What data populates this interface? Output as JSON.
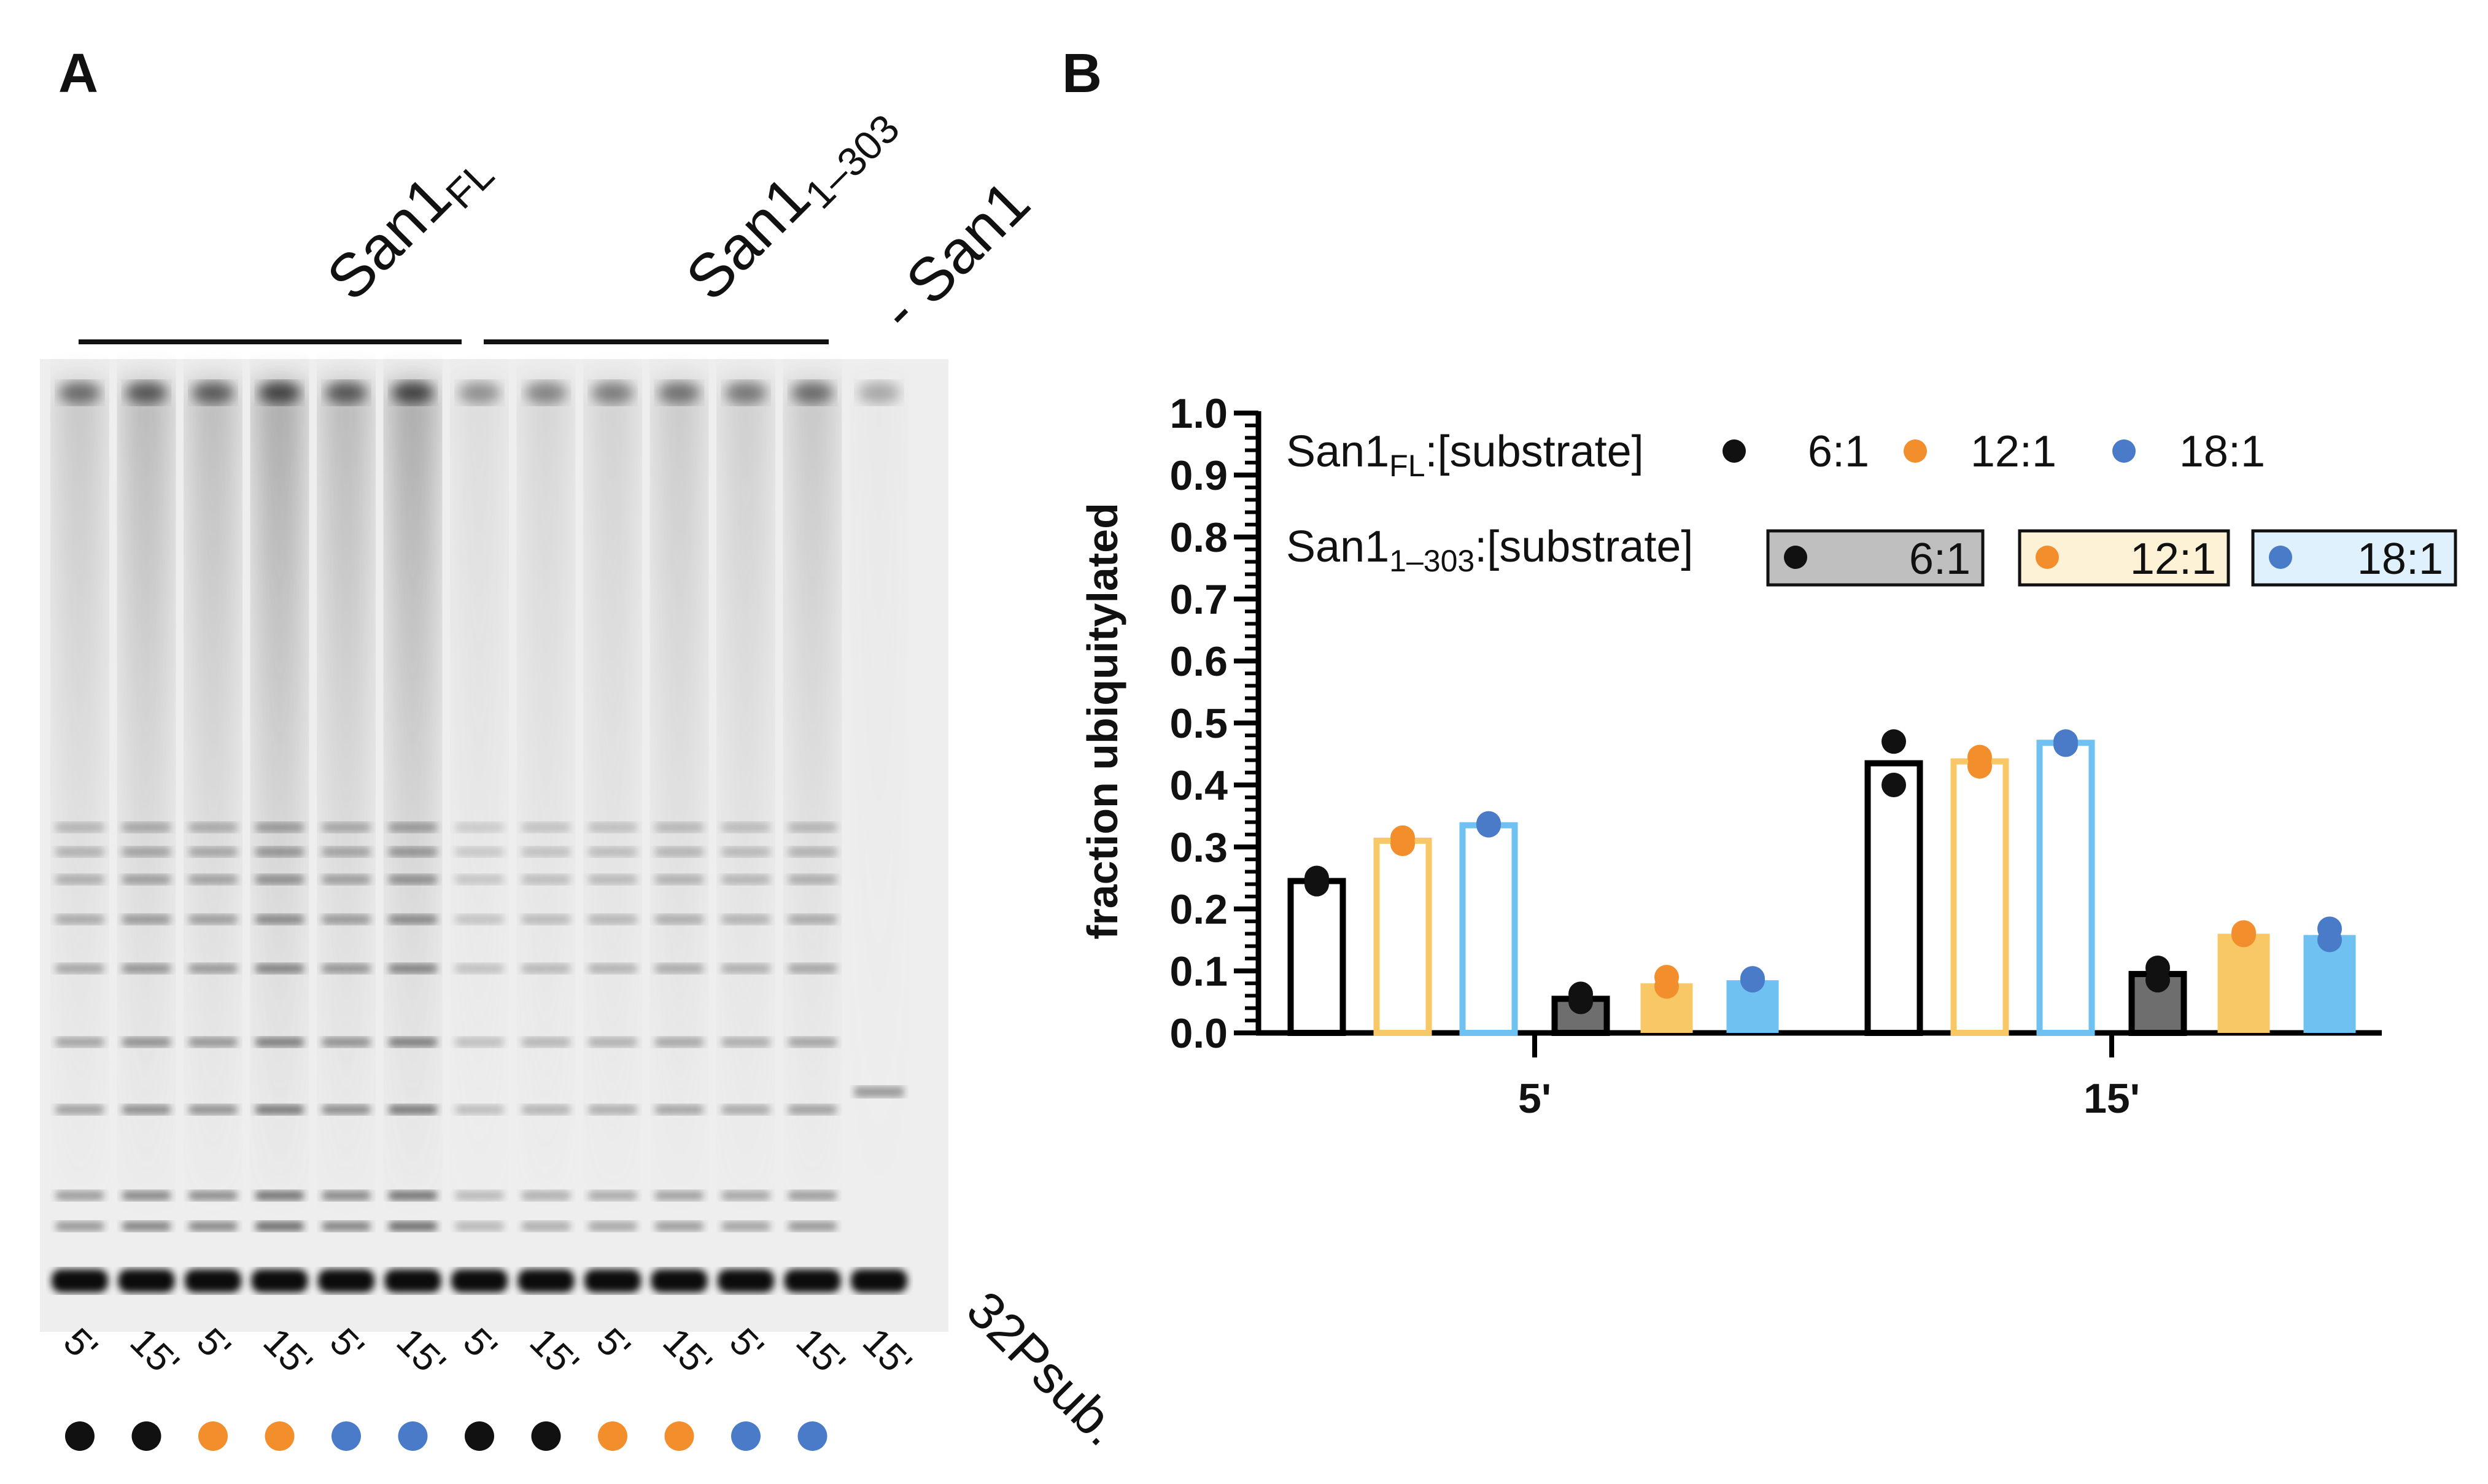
{
  "panel_a": {
    "letter": "A",
    "groups": [
      {
        "label_main": "San1",
        "label_sub": "FL"
      },
      {
        "label_main": "San1",
        "label_sub": "1–303"
      },
      {
        "label_main": "- San1",
        "label_sub": ""
      }
    ],
    "lanes": [
      {
        "time": "5'",
        "dot": "#111111"
      },
      {
        "time": "15'",
        "dot": "#111111"
      },
      {
        "time": "5'",
        "dot": "#f28e2b"
      },
      {
        "time": "15'",
        "dot": "#f28e2b"
      },
      {
        "time": "5'",
        "dot": "#4a7bc8"
      },
      {
        "time": "15'",
        "dot": "#4a7bc8"
      },
      {
        "time": "5'",
        "dot": "#111111"
      },
      {
        "time": "15'",
        "dot": "#111111"
      },
      {
        "time": "5'",
        "dot": "#f28e2b"
      },
      {
        "time": "15'",
        "dot": "#f28e2b"
      },
      {
        "time": "5'",
        "dot": "#4a7bc8"
      },
      {
        "time": "15'",
        "dot": "#4a7bc8"
      },
      {
        "time": "15'",
        "dot": ""
      }
    ],
    "substrate_label": "32Psub."
  },
  "panel_b": {
    "letter": "B"
  },
  "chart_data": {
    "type": "bar",
    "title": "",
    "ylabel": "fraction ubiquitylated",
    "xlabel": "",
    "ylim": [
      0,
      1.0
    ],
    "yticks": [
      "0.0",
      "0.1",
      "0.2",
      "0.3",
      "0.4",
      "0.5",
      "0.6",
      "0.7",
      "0.8",
      "0.9",
      "1.0"
    ],
    "categories": [
      "5'",
      "15'"
    ],
    "legend": {
      "fl_prefix": "San1",
      "fl_sub": "FL",
      "fl_suffix": ":[substrate]",
      "t_prefix": "San1",
      "t_sub": "1–303",
      "t_suffix": ":[substrate]",
      "ratios": [
        "6:1",
        "12:1",
        "18:1"
      ]
    },
    "series": [
      {
        "name": "San1FL 6:1",
        "construct": "FL",
        "ratio": "6:1",
        "color": "#000000",
        "fill": "#ffffff",
        "values": [
          0.245,
          0.435
        ],
        "points": [
          [
            0.24,
            0.25
          ],
          [
            0.4,
            0.47
          ]
        ]
      },
      {
        "name": "San1FL 12:1",
        "construct": "FL",
        "ratio": "12:1",
        "color": "#f8c867",
        "fill": "#ffffff",
        "values": [
          0.31,
          0.438
        ],
        "points": [
          [
            0.305,
            0.315
          ],
          [
            0.43,
            0.445
          ]
        ]
      },
      {
        "name": "San1FL 18:1",
        "construct": "FL",
        "ratio": "18:1",
        "color": "#6ec1f0",
        "fill": "#ffffff",
        "values": [
          0.335,
          0.468
        ],
        "points": [
          [
            0.335,
            0.338
          ],
          [
            0.465,
            0.47
          ]
        ]
      },
      {
        "name": "San1 1-303 6:1",
        "construct": "1-303",
        "ratio": "6:1",
        "color": "#000000",
        "fill": "#6e6e6e",
        "values": [
          0.055,
          0.095
        ],
        "points": [
          [
            0.05,
            0.063
          ],
          [
            0.085,
            0.105
          ]
        ]
      },
      {
        "name": "San1 1-303 12:1",
        "construct": "1-303",
        "ratio": "12:1",
        "color": "#f8c867",
        "fill": "#f8c867",
        "values": [
          0.08,
          0.16
        ],
        "points": [
          [
            0.075,
            0.09
          ],
          [
            0.158,
            0.162
          ]
        ]
      },
      {
        "name": "San1 1-303 18:1",
        "construct": "1-303",
        "ratio": "18:1",
        "color": "#6ec1f0",
        "fill": "#6ec1f0",
        "values": [
          0.085,
          0.158
        ],
        "points": [
          [
            0.085,
            0.088
          ],
          [
            0.15,
            0.168
          ]
        ]
      }
    ],
    "point_colors": {
      "6:1": "#111111",
      "12:1": "#f28e2b",
      "18:1": "#4a7bc8"
    },
    "legend_box_fills": {
      "6:1": "#bfbfbf",
      "12:1": "#fdf1d6",
      "18:1": "#dff1fc"
    }
  }
}
